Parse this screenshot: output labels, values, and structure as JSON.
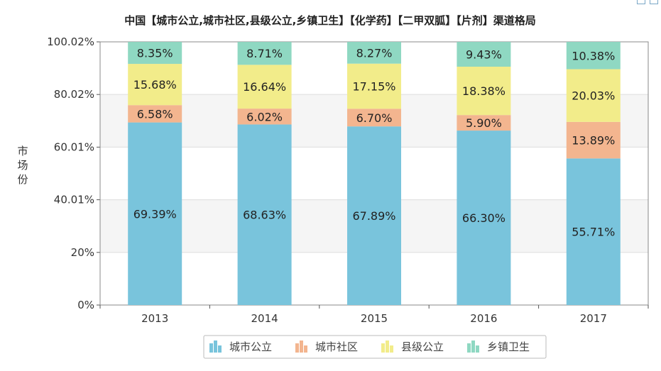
{
  "chart_data": {
    "type": "bar",
    "stacked": true,
    "title": "中国【城市公立,城市社区,县级公立,乡镇卫生】【化学药】【二甲双胍】【片剂】渠道格局",
    "xlabel": "",
    "ylabel": "市场份",
    "ylim": [
      0,
      100.02
    ],
    "yticks": [
      "0%",
      "20%",
      "40.01%",
      "60.01%",
      "80.02%",
      "100.02%"
    ],
    "ytick_values": [
      0,
      20,
      40.01,
      60.01,
      80.02,
      100.02
    ],
    "grid": true,
    "legend_position": "bottom-center",
    "categories": [
      "2013",
      "2014",
      "2015",
      "2016",
      "2017"
    ],
    "series": [
      {
        "name": "城市公立",
        "color": "#79c4dc",
        "values": [
          69.39,
          68.63,
          67.89,
          66.3,
          55.71
        ],
        "labels": [
          "69.39%",
          "68.63%",
          "67.89%",
          "66.30%",
          "55.71%"
        ]
      },
      {
        "name": "城市社区",
        "color": "#f3b58f",
        "values": [
          6.58,
          6.02,
          6.7,
          5.9,
          13.89
        ],
        "labels": [
          "6.58%",
          "6.02%",
          "6.70%",
          "5.90%",
          "13.89%"
        ]
      },
      {
        "name": "县级公立",
        "color": "#f2ec8a",
        "values": [
          15.68,
          16.64,
          17.15,
          18.38,
          20.03
        ],
        "labels": [
          "15.68%",
          "16.64%",
          "17.15%",
          "18.38%",
          "20.03%"
        ]
      },
      {
        "name": "乡镇卫生",
        "color": "#8fd8c2",
        "values": [
          8.35,
          8.71,
          8.27,
          9.43,
          10.38
        ],
        "labels": [
          "8.35%",
          "8.71%",
          "8.27%",
          "9.43%",
          "10.38%"
        ]
      }
    ]
  }
}
